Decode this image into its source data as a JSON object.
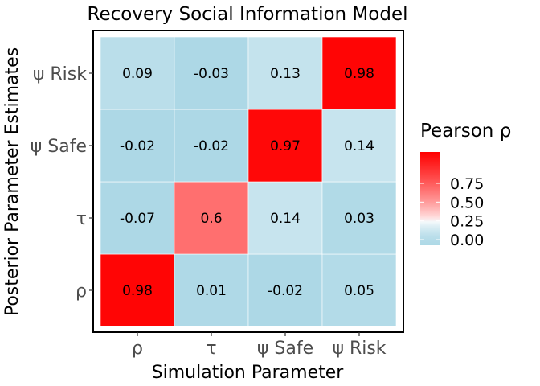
{
  "chart_data": {
    "type": "heatmap",
    "title": "Recovery Social Information Model",
    "xlabel": "Simulation Parameter",
    "ylabel": "Posterior Parameter Estimates",
    "x_categories": [
      "ρ",
      "τ",
      "ψ Safe",
      "ψ Risk"
    ],
    "y_categories": [
      "ρ",
      "τ",
      "ψ Safe",
      "ψ Risk"
    ],
    "values": [
      [
        0.98,
        0.01,
        -0.02,
        0.05
      ],
      [
        -0.07,
        0.6,
        0.14,
        0.03
      ],
      [
        -0.02,
        -0.02,
        0.97,
        0.14
      ],
      [
        0.09,
        -0.03,
        0.13,
        0.98
      ]
    ],
    "value_labels": [
      [
        "0.98",
        "0.01",
        "-0.02",
        "0.05"
      ],
      [
        "-0.07",
        "0.6",
        "0.14",
        "0.03"
      ],
      [
        "-0.02",
        "-0.02",
        "0.97",
        "0.14"
      ],
      [
        "0.09",
        "-0.03",
        "0.13",
        "0.98"
      ]
    ],
    "legend": {
      "title": "Pearson ρ",
      "placement": "right",
      "ticks": [
        0.0,
        0.25,
        0.5,
        0.75
      ],
      "tick_labels": [
        "0.00",
        "0.25",
        "0.50",
        "0.75"
      ],
      "range": [
        0.0,
        1.0
      ]
    },
    "colors": {
      "low": "#add8e6",
      "mid": "#ffffff",
      "high": "#ff0000",
      "midpoint": 0.25
    },
    "grid": false
  }
}
